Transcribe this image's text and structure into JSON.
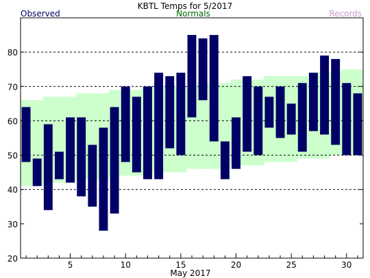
{
  "chart_data": {
    "type": "bar",
    "title": "KBTL Temps for  5/2017",
    "xlabel": "May 2017",
    "ylabel": "",
    "legend": {
      "observed": "Observed",
      "normals": "Normals",
      "records": "Records"
    },
    "colors": {
      "observed": "#000066",
      "normals": "#ccffcc",
      "records": "#cc99cc",
      "legend_observed": "#000066",
      "legend_normals": "#006600",
      "legend_records": "#cc99cc"
    },
    "xlim": [
      0.5,
      31.5
    ],
    "ylim": [
      20,
      90
    ],
    "grid": true,
    "grid_lines": [
      40,
      50,
      60,
      70,
      80
    ],
    "x_ticks": [
      5,
      10,
      15,
      20,
      25,
      30
    ],
    "y_ticks": [
      20,
      30,
      40,
      50,
      60,
      70,
      80
    ],
    "days": [
      1,
      2,
      3,
      4,
      5,
      6,
      7,
      8,
      9,
      10,
      11,
      12,
      13,
      14,
      15,
      16,
      17,
      18,
      19,
      20,
      21,
      22,
      23,
      24,
      25,
      26,
      27,
      28,
      29,
      30,
      31
    ],
    "observed_high": [
      64,
      49,
      59,
      51,
      61,
      61,
      53,
      58,
      64,
      70,
      67,
      70,
      74,
      73,
      74,
      85,
      84,
      85,
      54,
      61,
      73,
      70,
      67,
      70,
      65,
      71,
      74,
      79,
      78,
      71,
      68
    ],
    "observed_low": [
      48,
      41,
      34,
      43,
      42,
      38,
      35,
      28,
      33,
      48,
      45,
      43,
      43,
      52,
      50,
      61,
      66,
      54,
      43,
      46,
      51,
      50,
      58,
      55,
      56,
      51,
      57,
      56,
      53,
      50,
      50
    ],
    "normal_high": [
      66,
      66,
      67,
      67,
      67,
      68,
      68,
      68,
      69,
      69,
      69,
      70,
      70,
      70,
      70,
      70,
      71,
      71,
      71,
      72,
      72,
      72,
      73,
      73,
      73,
      73,
      74,
      74,
      74,
      75,
      75
    ],
    "normal_low": [
      41,
      41,
      42,
      42,
      42,
      43,
      43,
      43,
      44,
      44,
      44,
      44,
      45,
      45,
      45,
      46,
      46,
      46,
      46,
      47,
      47,
      47,
      48,
      48,
      48,
      49,
      49,
      49,
      50,
      50,
      50
    ]
  }
}
